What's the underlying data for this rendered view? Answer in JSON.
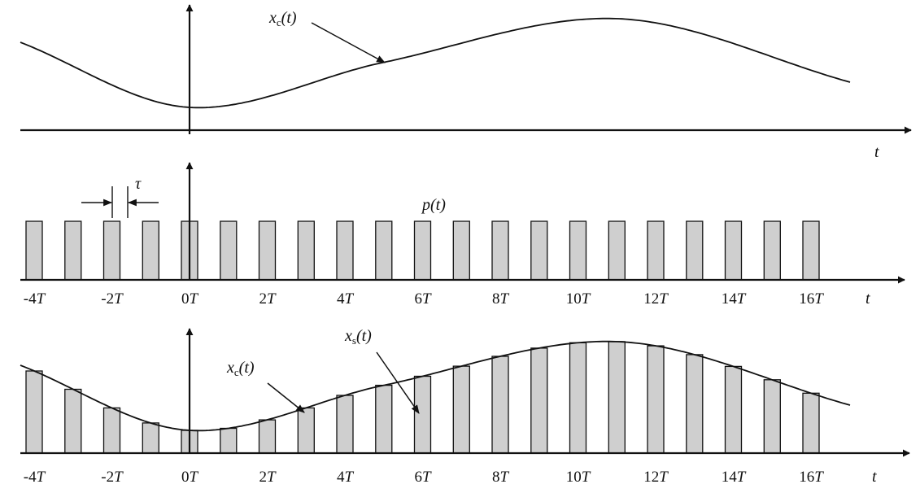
{
  "panels": {
    "top": {
      "signal_label_main": "x",
      "signal_label_sub": "c",
      "signal_label_arg": "(t)",
      "axis_label": "t"
    },
    "middle": {
      "width_label": "τ",
      "signal_label": "p(t)",
      "axis_label": "t"
    },
    "bottom": {
      "continuous_label_main": "x",
      "continuous_label_sub": "c",
      "continuous_label_arg": "(t)",
      "sampled_label_main": "x",
      "sampled_label_sub": "s",
      "sampled_label_arg": "(t)",
      "axis_label": "t"
    }
  },
  "time_ticks": [
    "-4T",
    "-2T",
    "0T",
    "2T",
    "4T",
    "6T",
    "8T",
    "10T",
    "12T",
    "14T",
    "16T"
  ],
  "pulse_positions_T": [
    -4,
    -3,
    -2,
    -1,
    0,
    1,
    2,
    3,
    4,
    5,
    6,
    7,
    8,
    9,
    10,
    11,
    12,
    13,
    14,
    15,
    16
  ]
}
